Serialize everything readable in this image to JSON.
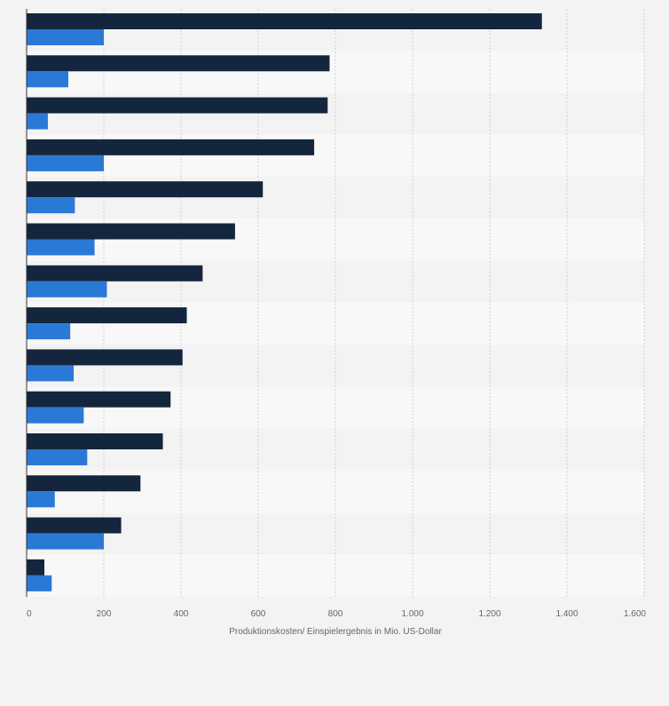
{
  "chart_data": {
    "type": "bar",
    "orientation": "horizontal",
    "categories": [
      "",
      "",
      "",
      "",
      "",
      "",
      "",
      "",
      "",
      "",
      "",
      "",
      "",
      ""
    ],
    "series": [
      {
        "values": [
          1335,
          785,
          780,
          745,
          612,
          540,
          456,
          415,
          404,
          373,
          353,
          295,
          245,
          46
        ]
      },
      {
        "values": [
          200,
          108,
          55,
          200,
          125,
          176,
          208,
          113,
          122,
          148,
          157,
          73,
          200,
          65
        ]
      }
    ],
    "series_colors": [
      "#14263d",
      "#2b79d7"
    ],
    "xlabel": "Produktionskosten/ Einspielergebnis in Mio. US-Dollar",
    "xlim": [
      0,
      1600
    ],
    "x_ticks": [
      0,
      200,
      400,
      600,
      800,
      1000,
      1200,
      1400,
      1600
    ],
    "x_tick_labels": [
      "0",
      "200",
      "400",
      "600",
      "800",
      "1.000",
      "1.200",
      "1.400",
      "1.600"
    ],
    "grid": true,
    "band_colors": [
      "#f3f3f4",
      "#f8f8f9"
    ],
    "legend": false
  }
}
